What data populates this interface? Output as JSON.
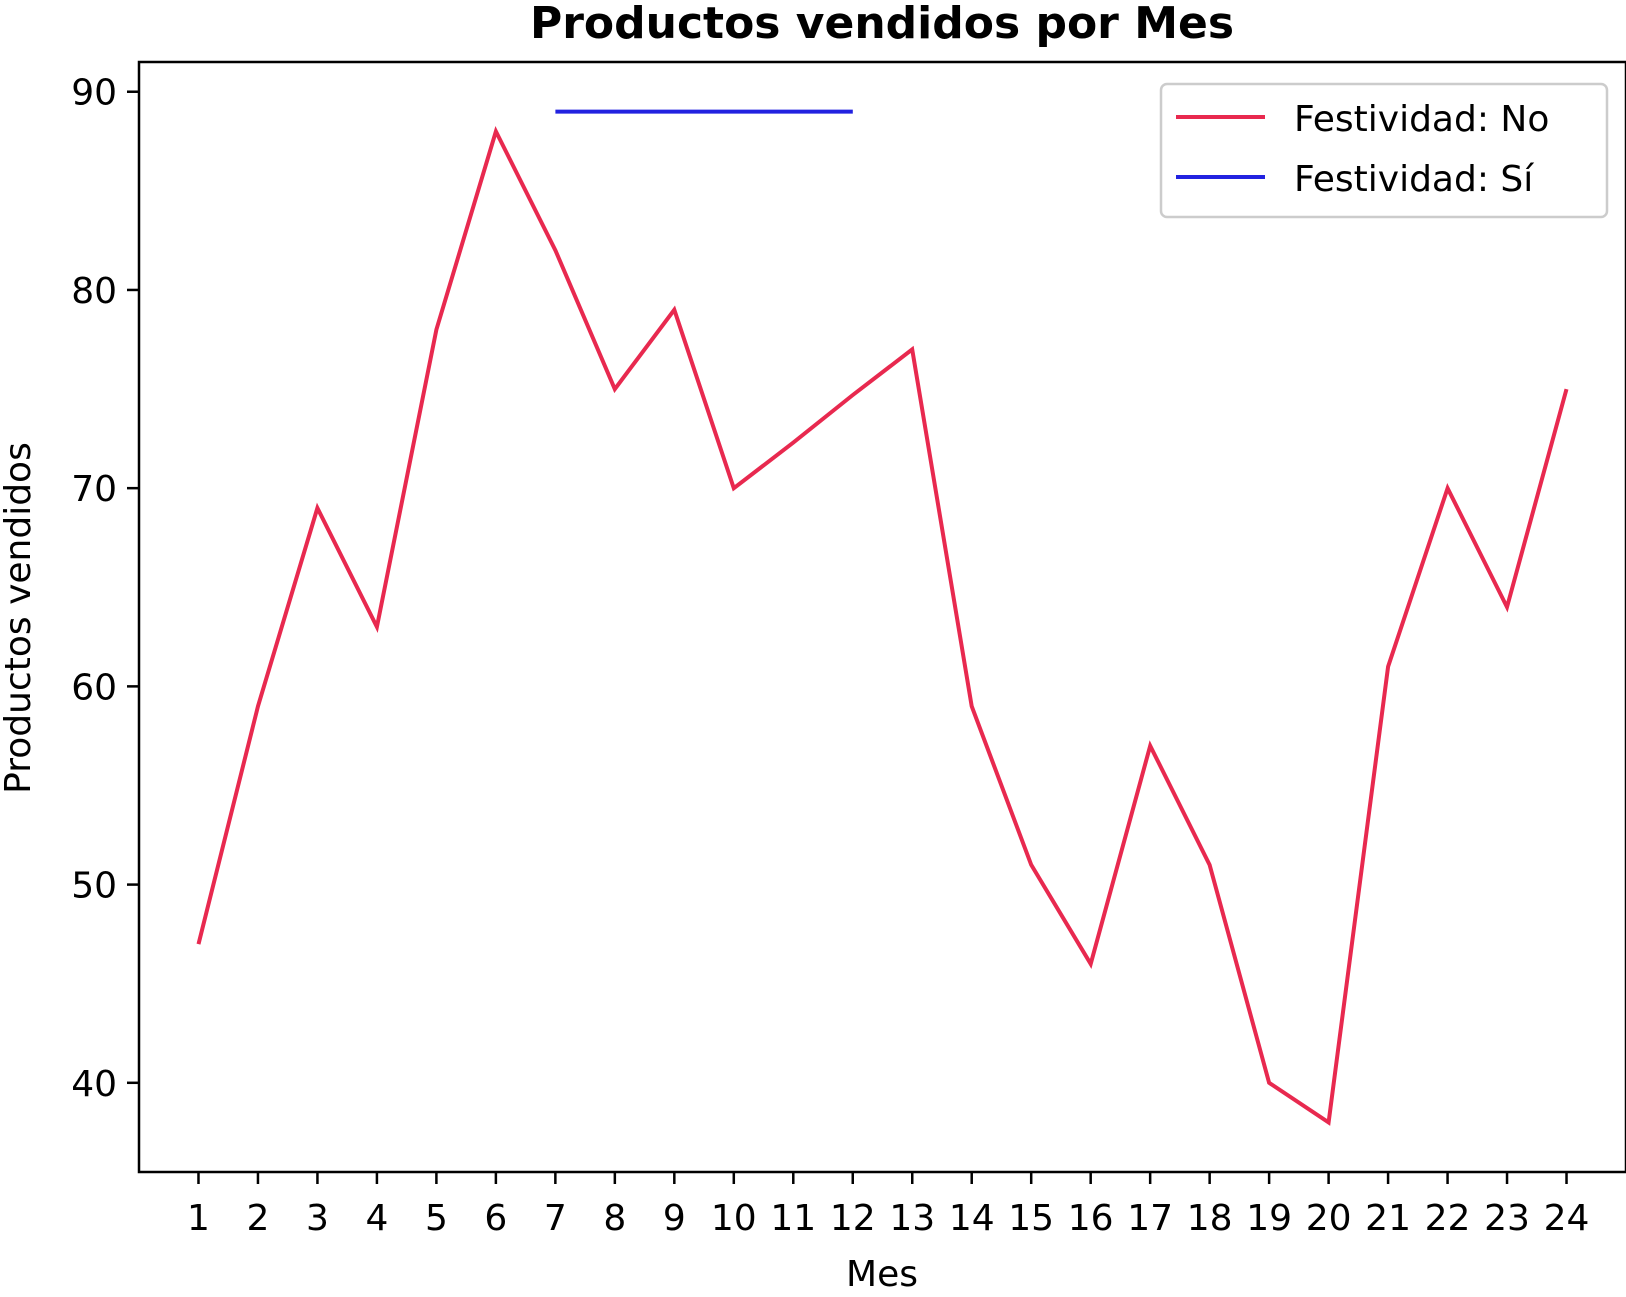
{
  "chart_data": {
    "type": "line",
    "title": "Productos vendidos por Mes",
    "xlabel": "Mes",
    "ylabel": "Productos vendidos",
    "x": [
      1,
      2,
      3,
      4,
      5,
      6,
      7,
      8,
      9,
      10,
      11,
      12,
      13,
      14,
      15,
      16,
      17,
      18,
      19,
      20,
      21,
      22,
      23,
      24
    ],
    "xlim": [
      0,
      25
    ],
    "ylim": [
      35.5,
      91.5
    ],
    "yticks": [
      40,
      50,
      60,
      70,
      80,
      90
    ],
    "grid": false,
    "legend_position": "top-right",
    "series": [
      {
        "name": "Festividad: No",
        "color": "#e8294f",
        "points": [
          [
            1,
            47
          ],
          [
            2,
            59
          ],
          [
            3,
            69
          ],
          [
            4,
            63
          ],
          [
            5,
            78
          ],
          [
            6,
            88
          ],
          [
            7,
            82
          ],
          [
            8,
            75
          ],
          [
            9,
            79
          ],
          [
            10,
            70
          ],
          [
            11,
            72.3
          ],
          [
            12,
            74.7
          ],
          [
            13,
            77
          ],
          [
            14,
            59
          ],
          [
            15,
            51
          ],
          [
            16,
            46
          ],
          [
            17,
            57
          ],
          [
            18,
            51
          ],
          [
            19,
            40
          ],
          [
            20,
            38
          ],
          [
            21,
            61
          ],
          [
            22,
            70
          ],
          [
            23,
            64
          ],
          [
            24,
            75
          ]
        ]
      },
      {
        "name": "Festividad: Sí",
        "color": "#2222e0",
        "points": [
          [
            7,
            89
          ],
          [
            8,
            89
          ],
          [
            9,
            89
          ],
          [
            10,
            89
          ],
          [
            11,
            89
          ],
          [
            12,
            89
          ]
        ]
      }
    ]
  }
}
